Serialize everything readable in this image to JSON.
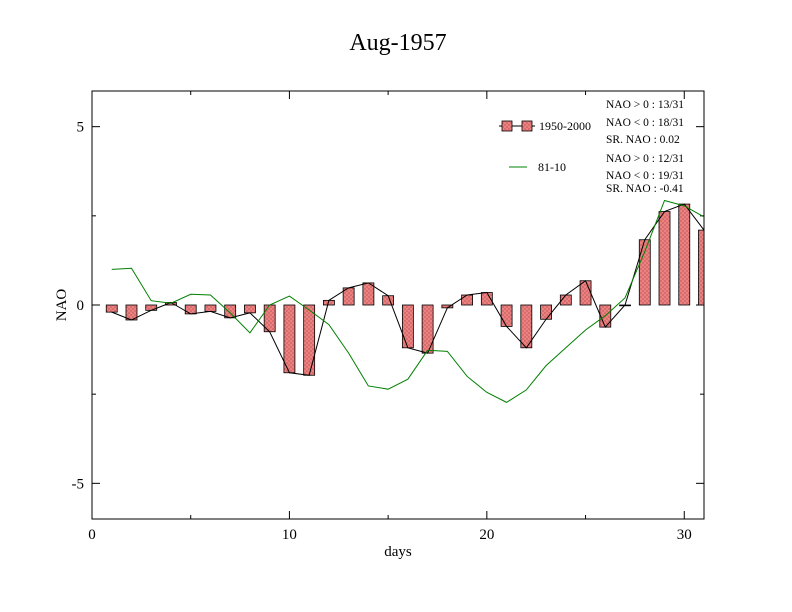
{
  "chart_data": {
    "type": "bar",
    "title": "Aug-1957",
    "xlabel": "days",
    "ylabel": "NAO",
    "xlim": [
      0,
      31
    ],
    "ylim": [
      -6,
      6
    ],
    "xticks": [
      0,
      10,
      20,
      30
    ],
    "xtick_labels": [
      "0",
      "10",
      "20",
      "30"
    ],
    "yticks": [
      5,
      0,
      -5
    ],
    "ytick_labels": [
      "5",
      "0",
      "-5"
    ],
    "grid": false,
    "legend_position": "top-right",
    "colors": {
      "bars": "#f08080",
      "bar_outline": "#000000",
      "line_1950": "#000000",
      "line_8110": "#008000"
    },
    "series": [
      {
        "name": "1950-2000",
        "kind": "bar-with-line",
        "x": [
          1,
          2,
          3,
          4,
          5,
          6,
          7,
          8,
          9,
          10,
          11,
          12,
          13,
          14,
          15,
          16,
          17,
          18,
          19,
          20,
          21,
          22,
          23,
          24,
          25,
          26,
          27,
          28,
          29,
          30,
          31
        ],
        "values": [
          -0.2,
          -0.42,
          -0.15,
          0.07,
          -0.25,
          -0.18,
          -0.36,
          -0.22,
          -0.75,
          -1.9,
          -1.97,
          0.13,
          0.48,
          0.62,
          0.26,
          -1.2,
          -1.35,
          -0.08,
          0.28,
          0.35,
          -0.6,
          -1.2,
          -0.4,
          0.28,
          0.68,
          -0.62,
          0.0,
          1.83,
          2.62,
          2.83,
          2.1
        ]
      },
      {
        "name": "81-10",
        "kind": "line",
        "x": [
          1,
          2,
          3,
          4,
          5,
          6,
          7,
          8,
          9,
          10,
          11,
          12,
          13,
          14,
          15,
          16,
          17,
          18,
          19,
          20,
          21,
          22,
          23,
          24,
          25,
          26,
          27,
          28,
          29,
          30,
          31
        ],
        "values": [
          1.0,
          1.03,
          0.12,
          0.05,
          0.3,
          0.28,
          -0.22,
          -0.78,
          0.0,
          0.25,
          -0.14,
          -0.55,
          -1.35,
          -2.27,
          -2.36,
          -2.08,
          -1.27,
          -1.3,
          -2.0,
          -2.45,
          -2.73,
          -2.38,
          -1.7,
          -1.2,
          -0.7,
          -0.3,
          0.2,
          1.5,
          2.93,
          2.78,
          2.47
        ]
      }
    ],
    "legend": {
      "bar_label": "1950-2000",
      "line_label": "81-10",
      "stats_1950": [
        "NAO > 0 : 13/31",
        "NAO < 0 : 18/31",
        "SR. NAO : 0.02"
      ],
      "stats_8110": [
        "NAO > 0 : 12/31",
        "NAO < 0 : 19/31",
        "SR. NAO : -0.41"
      ]
    }
  }
}
